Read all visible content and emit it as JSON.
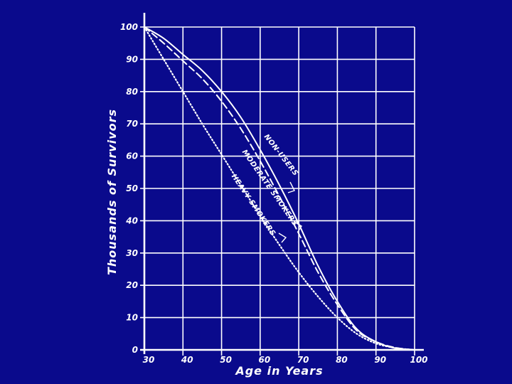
{
  "chart_data": {
    "type": "line",
    "title": "",
    "xlabel": "Age in Years",
    "ylabel": "Thousands of Survivors",
    "xlim": [
      30,
      100
    ],
    "ylim": [
      0,
      100
    ],
    "x_ticks": [
      "30",
      "40",
      "50",
      "60",
      "70",
      "80",
      "90",
      "100"
    ],
    "y_ticks": [
      "0",
      "10",
      "20",
      "30",
      "40",
      "50",
      "60",
      "70",
      "80",
      "90",
      "100"
    ],
    "grid": true,
    "colors": {
      "background": "#0a0a8c",
      "ink": "#ffffff"
    },
    "series": [
      {
        "name": "Non-Users",
        "style": "solid",
        "x": [
          30,
          35,
          40,
          45,
          50,
          55,
          60,
          65,
          70,
          75,
          80,
          85,
          90,
          95,
          100
        ],
        "y": [
          100,
          96.5,
          91.5,
          86.5,
          80,
          72,
          62,
          51,
          39,
          26,
          15,
          6.5,
          2.5,
          0.5,
          0
        ]
      },
      {
        "name": "Moderate Smokers",
        "style": "dashed",
        "x": [
          30,
          35,
          40,
          45,
          50,
          55,
          60,
          65,
          70,
          75,
          80,
          85,
          90,
          95,
          100
        ],
        "y": [
          100,
          95,
          89.5,
          84,
          77,
          68.5,
          58.5,
          47.5,
          36,
          24,
          14,
          6,
          2.5,
          0.7,
          0
        ]
      },
      {
        "name": "Heavy Smokers",
        "style": "dotted",
        "x": [
          30,
          35,
          40,
          45,
          50,
          55,
          60,
          65,
          70,
          75,
          80,
          85,
          90,
          95,
          100
        ],
        "y": [
          100,
          90,
          80,
          70,
          60.5,
          51,
          41.5,
          32.5,
          24,
          16.5,
          10,
          5,
          2,
          0.6,
          0
        ]
      }
    ],
    "annotations": [
      {
        "text": "Non-Users",
        "series": "Non-Users"
      },
      {
        "text": "Moderate Smokers",
        "series": "Moderate Smokers"
      },
      {
        "text": "Heavy Smokers",
        "series": "Heavy Smokers"
      }
    ]
  }
}
